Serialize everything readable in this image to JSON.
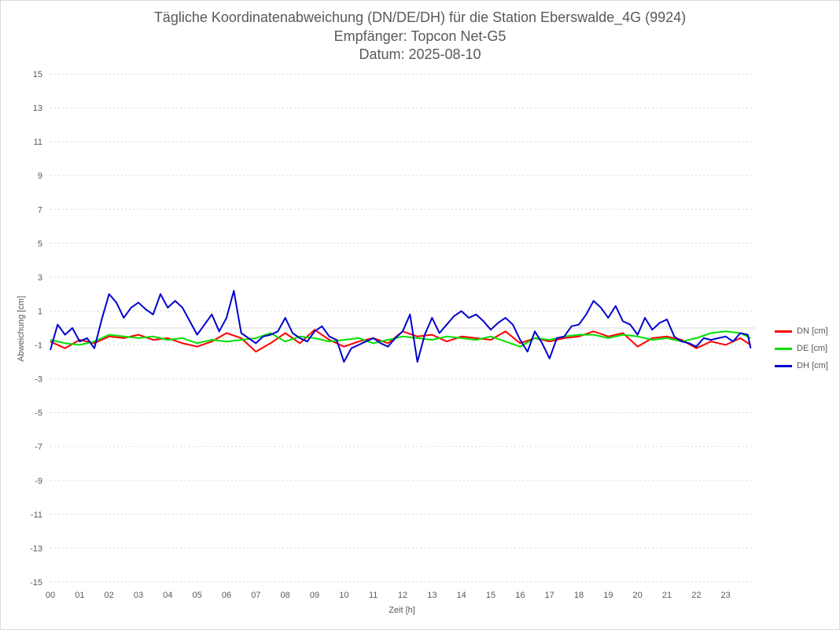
{
  "chart_data": {
    "type": "line",
    "title_lines": [
      "Tägliche Koordinatenabweichung (DN/DE/DH) für die Station Eberswalde_4G (9924)",
      "Empfänger: Topcon Net-G5",
      "Datum: 2025-08-10"
    ],
    "xlabel": "Zeit [h]",
    "ylabel": "Abweichung [cm]",
    "xlim": [
      0,
      24
    ],
    "ylim": [
      -15,
      15
    ],
    "x_ticks": [
      "00",
      "01",
      "02",
      "03",
      "04",
      "05",
      "06",
      "07",
      "08",
      "09",
      "10",
      "11",
      "12",
      "13",
      "14",
      "15",
      "16",
      "17",
      "18",
      "19",
      "20",
      "21",
      "22",
      "23"
    ],
    "y_ticks": [
      15,
      13,
      11,
      9,
      7,
      5,
      3,
      1,
      -1,
      -3,
      -5,
      -7,
      -9,
      -11,
      -13,
      -15
    ],
    "grid": "horizontal-dotted",
    "legend_position": "right",
    "series": [
      {
        "name": "DN [cm]",
        "color": "#ff0000",
        "x": [
          0,
          0.5,
          1,
          1.5,
          2,
          2.5,
          3,
          3.5,
          4,
          4.5,
          5,
          5.5,
          6,
          6.5,
          7,
          7.5,
          8,
          8.5,
          9,
          9.5,
          10,
          10.5,
          11,
          11.5,
          12,
          12.5,
          13,
          13.5,
          14,
          14.5,
          15,
          15.5,
          16,
          16.5,
          17,
          17.5,
          18,
          18.5,
          19,
          19.5,
          20,
          20.5,
          21,
          21.5,
          22,
          22.5,
          23,
          23.5,
          23.85
        ],
        "values": [
          -0.8,
          -1.2,
          -0.7,
          -0.9,
          -0.5,
          -0.6,
          -0.4,
          -0.7,
          -0.6,
          -0.9,
          -1.1,
          -0.8,
          -0.3,
          -0.6,
          -1.4,
          -0.9,
          -0.3,
          -0.9,
          -0.1,
          -0.7,
          -1.1,
          -0.8,
          -0.6,
          -0.9,
          -0.2,
          -0.5,
          -0.4,
          -0.8,
          -0.5,
          -0.6,
          -0.7,
          -0.2,
          -0.9,
          -0.6,
          -0.8,
          -0.6,
          -0.5,
          -0.2,
          -0.5,
          -0.3,
          -1.1,
          -0.6,
          -0.5,
          -0.7,
          -1.2,
          -0.8,
          -1.0,
          -0.6,
          -1.0
        ]
      },
      {
        "name": "DE [cm]",
        "color": "#00e000",
        "x": [
          0,
          0.5,
          1,
          1.5,
          2,
          2.5,
          3,
          3.5,
          4,
          4.5,
          5,
          5.5,
          6,
          6.5,
          7,
          7.5,
          8,
          8.5,
          9,
          9.5,
          10,
          10.5,
          11,
          11.5,
          12,
          12.5,
          13,
          13.5,
          14,
          14.5,
          15,
          15.5,
          16,
          16.5,
          17,
          17.5,
          18,
          18.5,
          19,
          19.5,
          20,
          20.5,
          21,
          21.5,
          22,
          22.5,
          23,
          23.5,
          23.85
        ],
        "values": [
          -0.7,
          -0.9,
          -1.0,
          -0.8,
          -0.4,
          -0.5,
          -0.6,
          -0.5,
          -0.7,
          -0.6,
          -0.9,
          -0.7,
          -0.8,
          -0.7,
          -0.6,
          -0.3,
          -0.8,
          -0.5,
          -0.6,
          -0.8,
          -0.7,
          -0.6,
          -0.9,
          -0.7,
          -0.5,
          -0.6,
          -0.7,
          -0.5,
          -0.6,
          -0.7,
          -0.5,
          -0.8,
          -1.1,
          -0.6,
          -0.7,
          -0.5,
          -0.4,
          -0.4,
          -0.6,
          -0.4,
          -0.5,
          -0.7,
          -0.6,
          -0.8,
          -0.6,
          -0.3,
          -0.2,
          -0.3,
          -0.6
        ]
      },
      {
        "name": "DH [cm]",
        "color": "#0000d0",
        "x": [
          0,
          0.25,
          0.5,
          0.75,
          1,
          1.25,
          1.5,
          1.75,
          2,
          2.25,
          2.5,
          2.75,
          3,
          3.25,
          3.5,
          3.75,
          4,
          4.25,
          4.5,
          4.75,
          5,
          5.25,
          5.5,
          5.75,
          6,
          6.25,
          6.5,
          6.75,
          7,
          7.25,
          7.5,
          7.75,
          8,
          8.25,
          8.5,
          8.75,
          9,
          9.25,
          9.5,
          9.75,
          10,
          10.25,
          10.5,
          10.75,
          11,
          11.25,
          11.5,
          11.75,
          12,
          12.25,
          12.5,
          12.75,
          13,
          13.25,
          13.5,
          13.75,
          14,
          14.25,
          14.5,
          14.75,
          15,
          15.25,
          15.5,
          15.75,
          16,
          16.25,
          16.5,
          16.75,
          17,
          17.25,
          17.5,
          17.75,
          18,
          18.25,
          18.5,
          18.75,
          19,
          19.25,
          19.5,
          19.75,
          20,
          20.25,
          20.5,
          20.75,
          21,
          21.25,
          21.5,
          21.75,
          22,
          22.25,
          22.5,
          22.75,
          23,
          23.25,
          23.5,
          23.75,
          23.85
        ],
        "values": [
          -1.3,
          0.2,
          -0.4,
          0.0,
          -0.8,
          -0.6,
          -1.2,
          0.5,
          2.0,
          1.5,
          0.6,
          1.2,
          1.5,
          1.1,
          0.8,
          2.0,
          1.2,
          1.6,
          1.2,
          0.4,
          -0.4,
          0.2,
          0.8,
          -0.2,
          0.6,
          2.2,
          -0.3,
          -0.6,
          -0.9,
          -0.5,
          -0.4,
          -0.2,
          0.6,
          -0.3,
          -0.6,
          -0.8,
          -0.2,
          0.1,
          -0.5,
          -0.7,
          -2.0,
          -1.2,
          -1.0,
          -0.8,
          -0.6,
          -0.9,
          -1.1,
          -0.6,
          -0.2,
          0.8,
          -2.0,
          -0.4,
          0.6,
          -0.3,
          0.2,
          0.7,
          1.0,
          0.6,
          0.8,
          0.4,
          -0.1,
          0.3,
          0.6,
          0.2,
          -0.7,
          -1.4,
          -0.2,
          -0.9,
          -1.8,
          -0.6,
          -0.5,
          0.1,
          0.2,
          0.8,
          1.6,
          1.2,
          0.6,
          1.3,
          0.4,
          0.2,
          -0.4,
          0.6,
          -0.1,
          0.3,
          0.5,
          -0.5,
          -0.8,
          -0.9,
          -1.1,
          -0.6,
          -0.7,
          -0.6,
          -0.5,
          -0.8,
          -0.3,
          -0.4,
          -1.2
        ]
      }
    ]
  }
}
